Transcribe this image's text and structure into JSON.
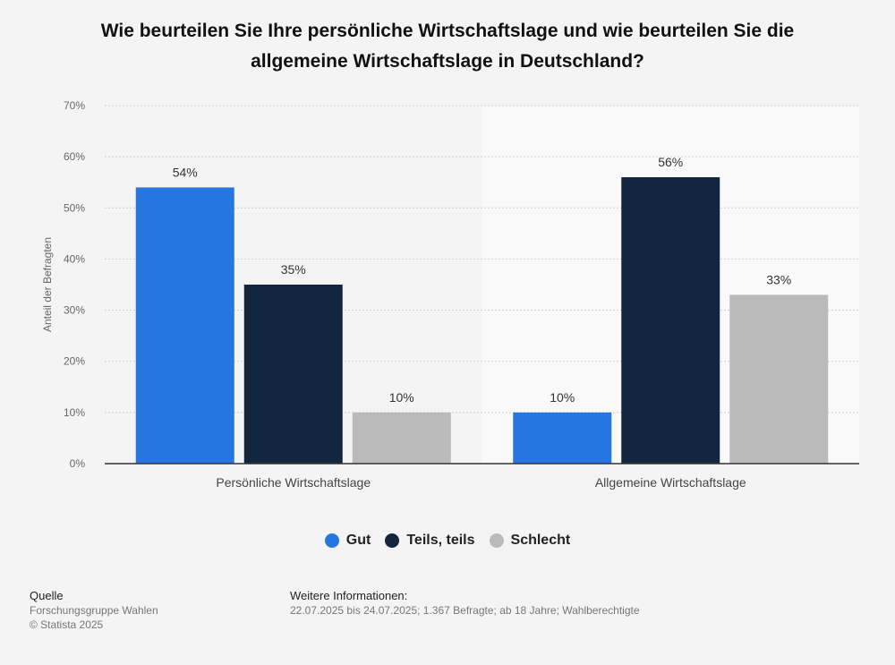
{
  "chart_data": {
    "type": "bar",
    "title_lines": [
      "Wie beurteilen Sie Ihre persönliche Wirtschaftslage und wie beurteilen Sie die",
      "allgemeine Wirtschaftslage in Deutschland?"
    ],
    "categories": [
      "Persönliche Wirtschaftslage",
      "Allgemeine Wirtschaftslage"
    ],
    "series": [
      {
        "name": "Gut",
        "values": [
          54,
          10
        ],
        "labels": [
          "54%",
          "10%"
        ],
        "color": "#2775de"
      },
      {
        "name": "Teils, teils",
        "values": [
          35,
          56
        ],
        "labels": [
          "35%",
          "56%"
        ],
        "color": "#12263f"
      },
      {
        "name": "Schlecht",
        "values": [
          10,
          33
        ],
        "labels": [
          "10%",
          "33%"
        ],
        "color": "#bababa"
      }
    ],
    "ylabel": "Anteil der Befragten",
    "xlabel": "",
    "ylim": [
      0,
      70
    ],
    "yticks": [
      "0%",
      "10%",
      "20%",
      "30%",
      "40%",
      "50%",
      "60%",
      "70%"
    ],
    "grid": true,
    "legend_position": "bottom-center"
  },
  "footer": {
    "source_heading": "Quelle",
    "source_name": "Forschungsgruppe Wahlen",
    "copyright": "© Statista 2025",
    "info_heading": "Weitere Informationen:",
    "info_text": "22.07.2025 bis 24.07.2025; 1.367 Befragte; ab 18 Jahre; Wahlberechtigte"
  }
}
